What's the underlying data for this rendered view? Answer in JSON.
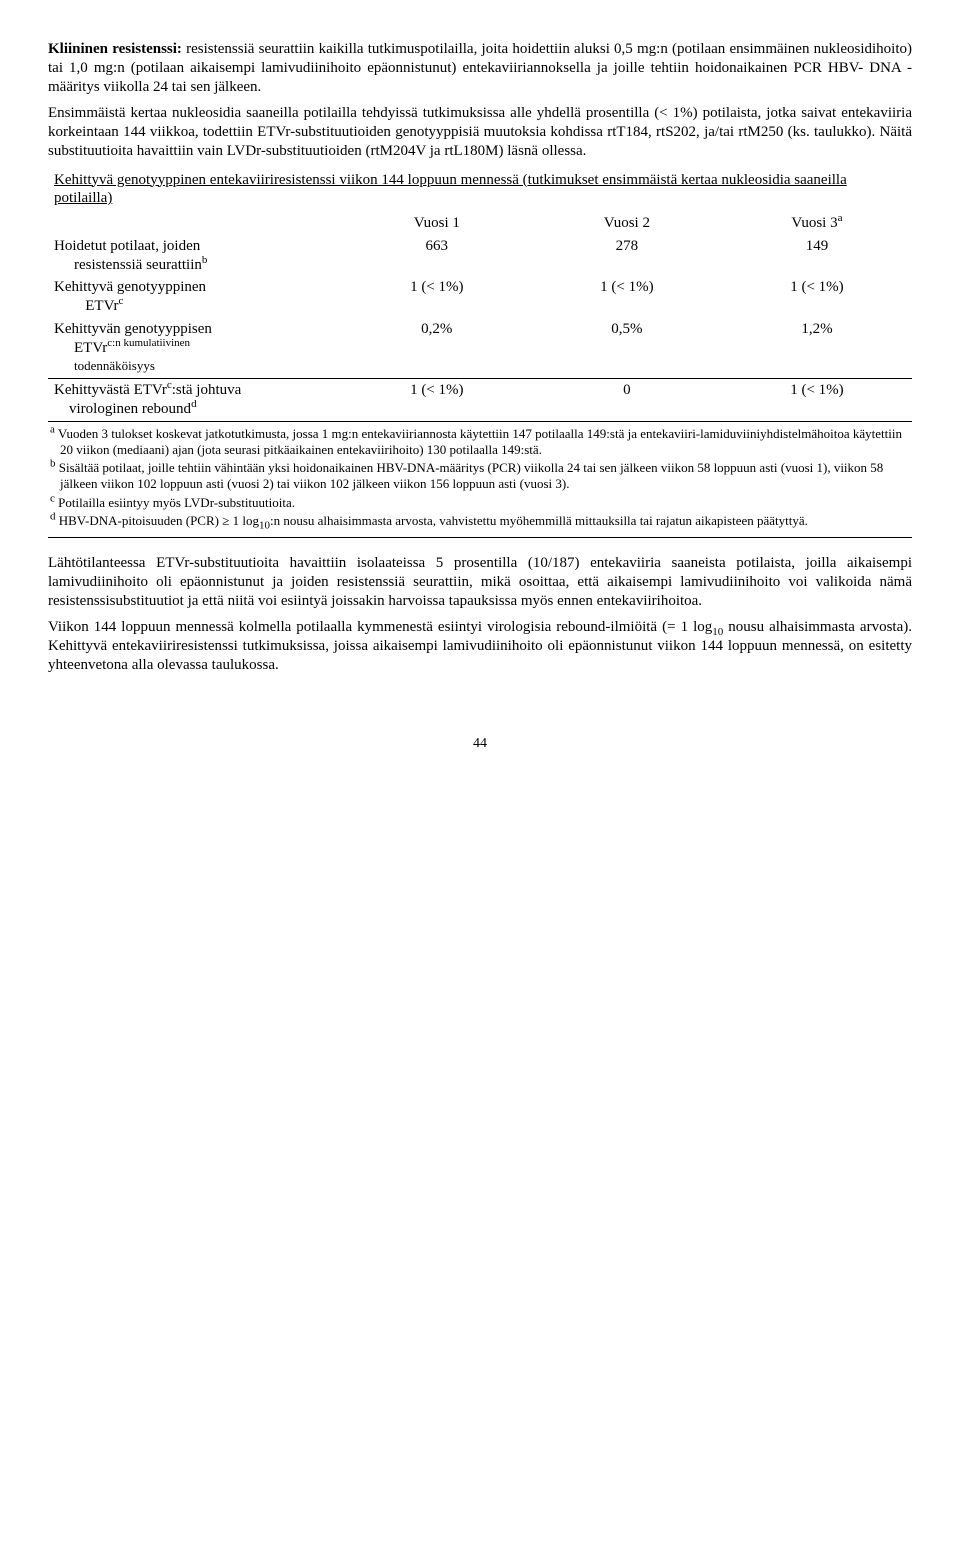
{
  "intro": {
    "lead_label": "Kliininen resistenssi:",
    "para1": " resistenssiä seurattiin kaikilla tutkimuspotilailla, joita hoidettiin aluksi 0,5 mg:n (potilaan ensimmäinen nukleosidihoito) tai 1,0 mg:n (potilaan aikaisempi lamivudiinihoito epäonnistunut) entekaviiriannoksella ja joille tehtiin hoidonaikainen PCR HBV- DNA -määritys viikolla 24 tai sen jälkeen.",
    "para2": "Ensimmäistä kertaa nukleosidia saaneilla potilailla tehdyissä tutkimuksissa alle yhdellä prosentilla (< 1%) potilaista, jotka saivat entekaviiria korkeintaan 144 viikkoa, todettiin ETVr-substituutioiden genotyyppisiä muutoksia kohdissa rtT184, rtS202, ja/tai rtM250 (ks. taulukko). Näitä substituutioita havaittiin vain LVDr-substituutioiden (rtM204V ja rtL180M) läsnä ollessa."
  },
  "table": {
    "title": "Kehittyvä genotyyppinen entekaviiriresistenssi viikon 144 loppuun mennessä (tutkimukset ensimmäistä kertaa nukleosidia saaneilla potilailla)",
    "headers": {
      "y1": "Vuosi 1",
      "y2": "Vuosi 2",
      "y3_pre": "Vuosi 3",
      "y3_sup": "a"
    },
    "rows": [
      {
        "label_main": "Hoidetut potilaat, joiden",
        "label_sub": "resistenssiä seurattiin",
        "label_sup": "b",
        "y1": "663",
        "y2": "278",
        "y3": "149"
      },
      {
        "label_main": "Kehittyvä genotyyppinen",
        "label_sub": "ETVr",
        "label_sup": "c",
        "y1": "1 (< 1%)",
        "y2": "1 (< 1%)",
        "y3": "1 (< 1%)"
      },
      {
        "label_main": "Kehittyvän genotyyppisen",
        "label_sub_pre": "ETVr",
        "label_sub_sup": "c:n kumulatiivinen",
        "label_sub2": "todennäköisyys",
        "y1": "0,2%",
        "y2": "0,5%",
        "y3": "1,2%"
      },
      {
        "label_pre": "Kehittyvästä ETVr",
        "label_mid_sup": "c",
        "label_post": ":stä johtuva",
        "label_sub": "virologinen rebound",
        "label_sup": "d",
        "y1": "1 (< 1%)",
        "y2": "0",
        "y3": "1 (< 1%)"
      }
    ]
  },
  "footnotes": {
    "a_sup": "a",
    "a": "  Vuoden 3 tulokset koskevat jatkotutkimusta, jossa 1 mg:n entekaviiriannosta käytettiin 147 potilaalla 149:stä ja entekaviiri-lamiduviiniyhdistelmähoitoa käytettiin 20 viikon (mediaani) ajan (jota seurasi pitkäaikainen entekaviirihoito) 130 potilaalla 149:stä.",
    "b_sup": "b",
    "b": "  Sisältää potilaat, joille tehtiin vähintään yksi hoidonaikainen HBV-DNA-määritys (PCR) viikolla 24 tai sen jälkeen viikon 58 loppuun asti (vuosi 1), viikon 58 jälkeen viikon 102 loppuun asti (vuosi 2) tai viikon 102 jälkeen viikon 156 loppuun asti (vuosi 3).",
    "c_sup": "c",
    "c": "  Potilailla esiintyy myös LVDr-substituutioita.",
    "d_sup": "d",
    "d_pre": "  HBV-DNA-pitoisuuden (PCR) ≥ 1 log",
    "d_sub": "10",
    "d_post": ":n nousu alhaisimmasta arvosta, vahvistettu myöhemmillä mittauksilla tai rajatun aikapisteen päätyttyä."
  },
  "outro": {
    "para1_pre": "Lähtötilanteessa ETVr-substituutioita havaittiin isolaateissa 5 prosentilla (10/187) entekaviiria saaneista potilaista, joilla aikaisempi lamivudiinihoito oli epäonnistunut ja joiden resistenssiä seurattiin, mikä osoittaa, että aikaisempi lamivudiinihoito voi valikoida nämä resistenssisubstituutiot ja että niitä voi esiintyä joissakin harvoissa tapauksissa myös ennen entekaviirihoitoa.",
    "para2_pre": "Viikon 144 loppuun mennessä kolmella potilaalla kymmenestä esiintyi virologisia rebound-ilmiöitä (= 1 log",
    "para2_sub": "10",
    "para2_post": " nousu alhaisimmasta arvosta). Kehittyvä entekaviiriresistenssi tutkimuksissa, joissa aikaisempi lamivudiinihoito oli epäonnistunut viikon 144 loppuun mennessä, on esitetty yhteenvetona alla olevassa taulukossa."
  },
  "page_number": "44"
}
